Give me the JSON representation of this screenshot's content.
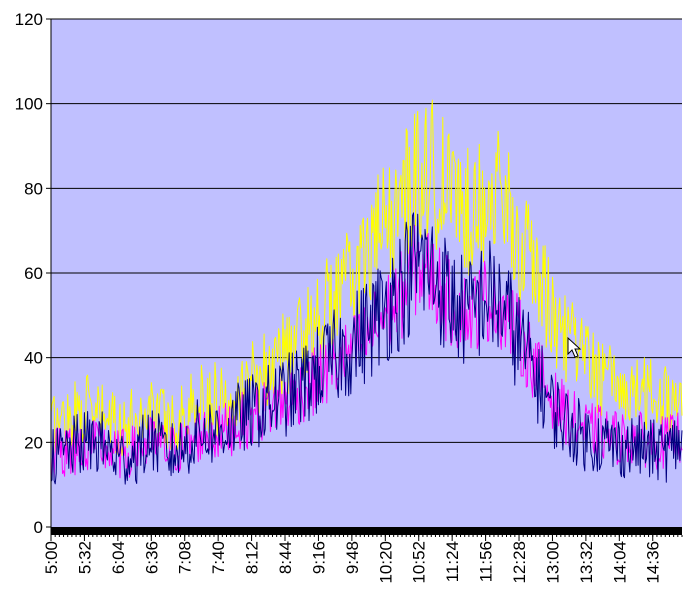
{
  "chart_data": {
    "type": "line",
    "title": "",
    "xlabel": "",
    "ylabel": "",
    "ylim": [
      0,
      120
    ],
    "y_ticks": [
      0,
      20,
      40,
      60,
      80,
      100,
      120
    ],
    "x_ticks": [
      "5:00",
      "5:32",
      "6:04",
      "6:36",
      "7:08",
      "7:40",
      "8:12",
      "8:44",
      "9:16",
      "9:48",
      "10:20",
      "10:52",
      "11:24",
      "11:56",
      "12:28",
      "13:00",
      "13:32",
      "14:04",
      "14:36"
    ],
    "x_range": [
      "5:00",
      "15:04"
    ],
    "grid": "horizontal",
    "legend": "none",
    "plot_background": "#c0c0ff",
    "series": [
      {
        "color": "#ffff00",
        "x": [
          "5:00",
          "5:16",
          "5:32",
          "5:48",
          "6:04",
          "6:20",
          "6:36",
          "6:52",
          "7:08",
          "7:24",
          "7:40",
          "7:56",
          "8:12",
          "8:28",
          "8:44",
          "9:00",
          "9:16",
          "9:32",
          "9:48",
          "10:04",
          "10:20",
          "10:36",
          "10:52",
          "11:08",
          "11:24",
          "11:40",
          "11:56",
          "12:12",
          "12:28",
          "12:44",
          "13:00",
          "13:16",
          "13:32",
          "13:48",
          "14:04",
          "14:20",
          "14:36",
          "14:52",
          "15:04"
        ],
        "values": [
          24,
          26,
          28,
          26,
          24,
          25,
          29,
          25,
          27,
          31,
          30,
          33,
          36,
          38,
          41,
          45,
          50,
          54,
          59,
          65,
          71,
          76,
          86,
          83,
          78,
          75,
          79,
          77,
          68,
          60,
          50,
          44,
          39,
          35,
          33,
          32,
          31,
          30,
          33
        ]
      },
      {
        "color": "#ff00ff",
        "x": [
          "5:00",
          "5:16",
          "5:32",
          "5:48",
          "6:04",
          "6:20",
          "6:36",
          "6:52",
          "7:08",
          "7:24",
          "7:40",
          "7:56",
          "8:12",
          "8:28",
          "8:44",
          "9:00",
          "9:16",
          "9:32",
          "9:48",
          "10:04",
          "10:20",
          "10:36",
          "10:52",
          "11:08",
          "11:24",
          "11:40",
          "11:56",
          "12:12",
          "12:28",
          "12:44",
          "13:00",
          "13:16",
          "13:32",
          "13:48",
          "14:04",
          "14:20",
          "14:36",
          "14:52",
          "15:04"
        ],
        "values": [
          17,
          18,
          19,
          19,
          17,
          18,
          20,
          18,
          19,
          22,
          22,
          24,
          26,
          28,
          30,
          32,
          35,
          38,
          41,
          45,
          50,
          55,
          62,
          58,
          52,
          50,
          54,
          52,
          45,
          38,
          30,
          26,
          23,
          22,
          21,
          21,
          20,
          20,
          22
        ]
      },
      {
        "color": "#000080",
        "x": [
          "5:00",
          "5:16",
          "5:32",
          "5:48",
          "6:04",
          "6:20",
          "6:36",
          "6:52",
          "7:08",
          "7:24",
          "7:40",
          "7:56",
          "8:12",
          "8:28",
          "8:44",
          "9:00",
          "9:16",
          "9:32",
          "9:48",
          "10:04",
          "10:20",
          "10:36",
          "10:52",
          "11:08",
          "11:24",
          "11:40",
          "11:56",
          "12:12",
          "12:28",
          "12:44",
          "13:00",
          "13:16",
          "13:32",
          "13:48",
          "14:04",
          "14:20",
          "14:36",
          "14:52",
          "15:04"
        ],
        "values": [
          16,
          18,
          20,
          20,
          16,
          17,
          21,
          17,
          19,
          23,
          22,
          25,
          27,
          29,
          31,
          33,
          37,
          40,
          43,
          47,
          52,
          57,
          63,
          59,
          53,
          50,
          55,
          52,
          44,
          36,
          28,
          24,
          21,
          20,
          19,
          19,
          18,
          18,
          21
        ]
      }
    ]
  }
}
